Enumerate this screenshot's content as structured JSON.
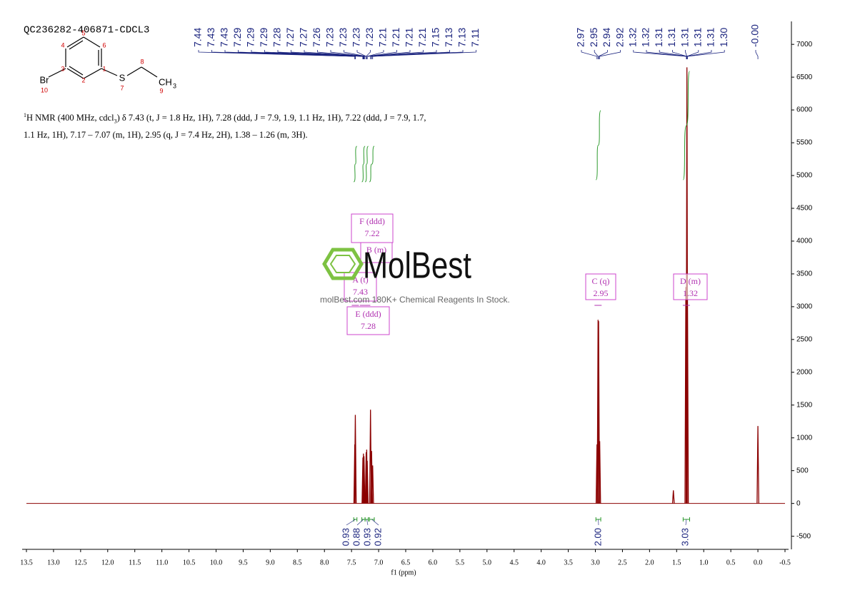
{
  "chart_data": {
    "type": "nmr",
    "title": "QC236282-406871-CDCL3",
    "x_label": "f1 (ppm)",
    "xlim": [
      13.5,
      -0.5
    ],
    "xticks": [
      13.5,
      {
        "value": 13,
        "label": "13.0"
      },
      12.5,
      {
        "value": 12,
        "label": "12.0"
      },
      11.5,
      {
        "value": 11,
        "label": "11.0"
      },
      10.5,
      {
        "value": 10,
        "label": "10.0"
      },
      9.5,
      {
        "value": 9,
        "label": "9.0"
      },
      8.5,
      {
        "value": 8,
        "label": "8.0"
      },
      7.5,
      {
        "value": 7,
        "label": "7.0"
      },
      6.5,
      {
        "value": 6,
        "label": "6.0"
      },
      5.5,
      {
        "value": 5,
        "label": "5.0"
      },
      4.5,
      {
        "value": 4,
        "label": "4.0"
      },
      3.5,
      {
        "value": 3,
        "label": "3.0"
      },
      2.5,
      {
        "value": 2,
        "label": "2.0"
      },
      1.5,
      {
        "value": 1,
        "label": "1.0"
      },
      0.5,
      {
        "value": 0,
        "label": "0.0"
      },
      -0.5
    ],
    "ylim": [
      -700,
      7350
    ],
    "yticks": [
      -500,
      0,
      500,
      1000,
      1500,
      2000,
      2500,
      3000,
      3500,
      4000,
      4500,
      5000,
      5500,
      6000,
      6500,
      7000
    ],
    "color": "#8b0000",
    "peaks": {
      "x": [
        7.44,
        7.43,
        7.29,
        7.28,
        7.27,
        7.23,
        7.22,
        7.21,
        7.15,
        7.13,
        7.11,
        2.97,
        2.95,
        2.94,
        2.92,
        1.56,
        1.33,
        1.31,
        1.3,
        0.0
      ],
      "values": [
        900,
        1350,
        700,
        760,
        720,
        780,
        820,
        650,
        1430,
        800,
        580,
        900,
        2800,
        2780,
        950,
        200,
        3300,
        6650,
        3250,
        1180
      ]
    },
    "peak_labels": [
      [
        7.44,
        7.43,
        7.43,
        7.29,
        7.29,
        7.29,
        7.28,
        7.27,
        7.27,
        7.26,
        7.23,
        7.23,
        7.23,
        7.23,
        7.21,
        7.21,
        7.21,
        7.21,
        7.15,
        7.13,
        7.13,
        7.11
      ],
      [
        2.97,
        2.95,
        2.94,
        2.92,
        1.32,
        1.32,
        1.31,
        1.31,
        1.31,
        1.31,
        1.31,
        {
          "value": 1.3,
          "label": "1.30"
        }
      ],
      [
        {
          "value": 0,
          "label": "-0.00"
        }
      ]
    ],
    "integrals": [
      {
        "from": 7.46,
        "to": 7.4,
        "value": 0.93
      },
      {
        "from": 7.31,
        "to": 7.25,
        "value": 0.88
      },
      {
        "from": 7.25,
        "to": 7.19,
        "value": 0.93
      },
      {
        "from": 7.17,
        "to": 7.08,
        "value": 0.92
      },
      {
        "from": 2.99,
        "to": 2.9,
        "value": {
          "value": 2,
          "label": "2.00"
        }
      },
      {
        "from": 1.38,
        "to": 1.26,
        "value": 3.03
      }
    ],
    "multiplets": [
      {
        "name": "F (ddd)",
        "shift": 7.22
      },
      {
        "name": "B (m)"
      },
      {
        "name": "A (t)",
        "shift": 7.43
      },
      {
        "name": "E (ddd)",
        "shift": 7.28
      },
      {
        "name": "C (q)",
        "shift": 2.95
      },
      {
        "name": "D (m)",
        "shift": 1.32
      }
    ],
    "structure": {
      "atoms": [
        "Br",
        "S",
        "CH",
        "3"
      ],
      "numbers": [
        1,
        2,
        3,
        4,
        5,
        6,
        7,
        8,
        9,
        10
      ]
    },
    "description": [
      "1",
      "H NMR (400 MHz, cdcl",
      "3",
      ") δ 7.43 (t, J = 1.8 Hz, 1H), 7.28 (ddd, J = 7.9, 1.9, 1.1 Hz, 1H), 7.22 (ddd, J = 7.9, 1.7, 1.1 Hz, 1H), 7.17 – 7.07 (m, 1H), 2.95 (q, J = 7.4 Hz, 2H), 1.38 – 1.26 (m, 3H)."
    ],
    "watermark": {
      "brand": "MolBest",
      "tagline": "molBest.com 180K+ Chemical Reagents In Stock."
    }
  }
}
